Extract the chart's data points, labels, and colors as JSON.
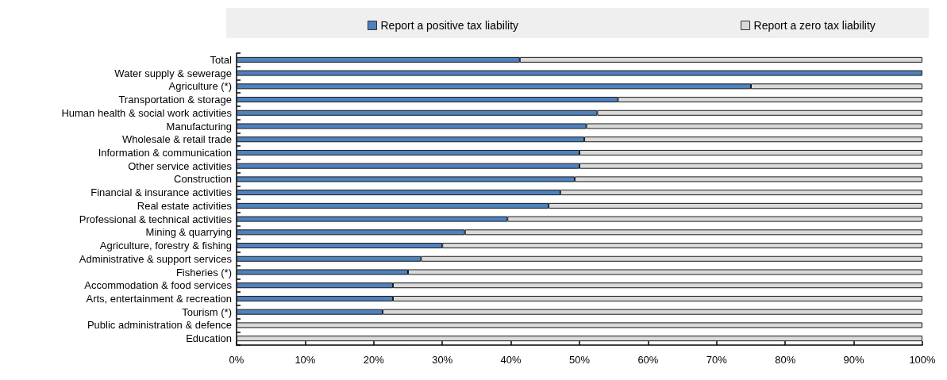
{
  "chart_data": {
    "type": "bar",
    "orientation": "horizontal",
    "stacked": true,
    "categories": [
      "Total",
      "Water supply & sewerage",
      "Agriculture (*)",
      "Transportation & storage",
      "Human health & social work activities",
      "Manufacturing",
      "Wholesale & retail trade",
      "Information & communication",
      "Other service activities",
      "Construction",
      "Financial & insurance activities",
      "Real estate activities",
      "Professional & technical activities",
      "Mining & quarrying",
      "Agriculture, forestry & fishing",
      "Administrative & support services",
      "Fisheries (*)",
      "Accommodation & food services",
      "Arts, entertainment & recreation",
      "Tourism (*)",
      "Public administration & defence",
      "Education"
    ],
    "series": [
      {
        "name": "Report a positive tax liability",
        "color": "#4f81bd",
        "values": [
          41.3,
          100,
          75,
          55.6,
          52.6,
          51,
          50.7,
          50,
          50,
          49.3,
          47.2,
          45.5,
          39.5,
          33.3,
          30,
          26.9,
          25,
          22.8,
          22.8,
          21.3,
          0,
          0
        ]
      },
      {
        "name": "Report a zero tax liability",
        "color": "#d9d9d9",
        "values": [
          58.7,
          0,
          25,
          44.4,
          47.4,
          49,
          49.3,
          50,
          50,
          50.7,
          52.8,
          54.5,
          60.5,
          66.7,
          70,
          73.1,
          75,
          77.2,
          77.2,
          78.7,
          100,
          100
        ]
      }
    ],
    "xlim": [
      0,
      100
    ],
    "xticks": [
      {
        "value": 0,
        "label": "0%"
      },
      {
        "value": 10,
        "label": "10%"
      },
      {
        "value": 20,
        "label": "20%"
      },
      {
        "value": 30,
        "label": "30%"
      },
      {
        "value": 40,
        "label": "40%"
      },
      {
        "value": 50,
        "label": "50%"
      },
      {
        "value": 60,
        "label": "60%"
      },
      {
        "value": 70,
        "label": "70%"
      },
      {
        "value": 80,
        "label": "80%"
      },
      {
        "value": 90,
        "label": "90%"
      },
      {
        "value": 100,
        "label": "100%"
      }
    ],
    "grid": false,
    "legend": "top"
  }
}
